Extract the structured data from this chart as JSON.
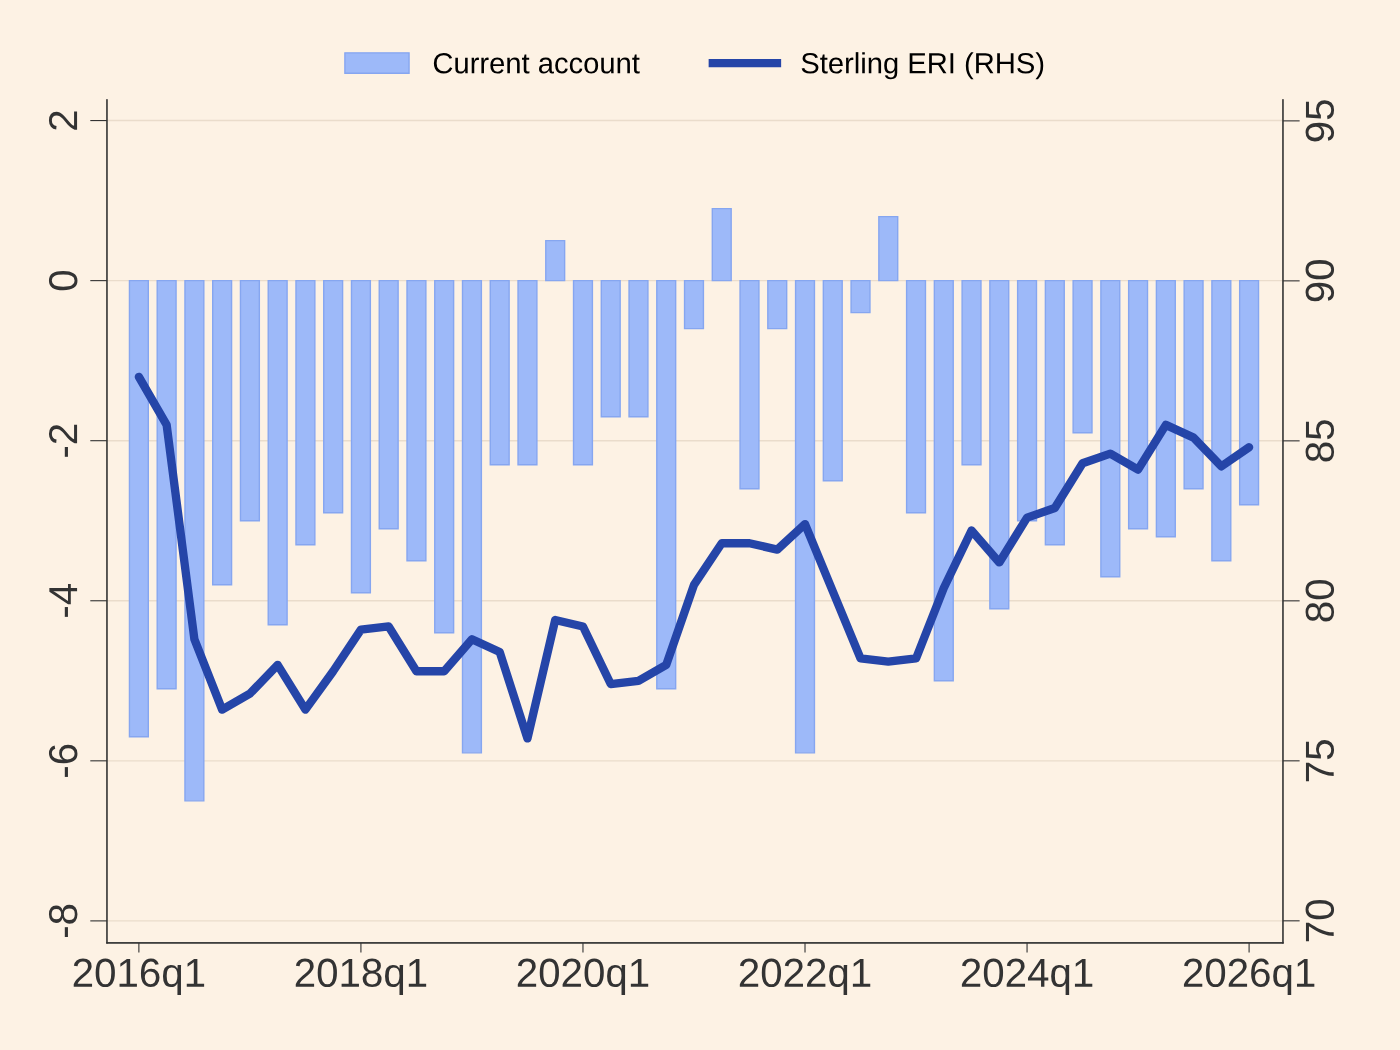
{
  "chart_data": {
    "type": "bar",
    "categories": [
      "2016q1",
      null,
      null,
      null,
      null,
      null,
      null,
      null,
      "2018q1",
      null,
      null,
      null,
      null,
      null,
      null,
      null,
      "2020q1",
      null,
      null,
      null,
      null,
      null,
      null,
      null,
      "2022q1",
      null,
      null,
      null,
      null,
      null,
      null,
      null,
      "2024q1",
      null,
      null,
      null,
      null,
      null,
      null,
      null,
      "2026q1"
    ],
    "series": [
      {
        "name": "Current account",
        "color": "#9db9f9",
        "values": [
          -5.7,
          -5.1,
          -6.5,
          -3.8,
          -3.0,
          -4.3,
          -3.3,
          -2.9,
          -3.9,
          -3.1,
          -3.5,
          -4.4,
          -5.9,
          -2.3,
          -2.3,
          0.5,
          -2.3,
          -1.7,
          -1.7,
          -5.1,
          -0.6,
          0.9,
          -2.6,
          -0.6,
          -5.9,
          -2.5,
          -0.4,
          0.8,
          -2.9,
          -5.0,
          -2.3,
          -4.1,
          -3.0,
          -3.3,
          -1.9,
          -3.7,
          -3.1,
          -3.2,
          -2.6,
          -3.5,
          -2.8
        ]
      },
      {
        "name": "Sterling ERI (RHS)",
        "type": "line",
        "axis": "y2",
        "color": "#2545a8",
        "values": [
          87.0,
          85.5,
          78.8,
          76.6,
          77.1,
          78.0,
          76.6,
          77.8,
          79.1,
          79.2,
          77.8,
          77.8,
          78.8,
          78.4,
          75.7,
          79.4,
          79.2,
          77.4,
          77.5,
          78.0,
          80.5,
          81.8,
          81.8,
          81.6,
          82.4,
          80.3,
          78.2,
          78.1,
          78.2,
          80.4,
          82.2,
          81.2,
          82.6,
          82.9,
          84.3,
          84.6,
          84.1,
          85.5,
          85.1,
          84.2,
          84.8
        ]
      }
    ],
    "ylim": [
      -8.275,
      2.26
    ],
    "yticks": [
      -8,
      -6,
      -4,
      -2,
      0,
      2
    ],
    "y2lim": [
      69.31,
      95.66
    ],
    "y2ticks": [
      70,
      75,
      80,
      85,
      90,
      95
    ],
    "grid": "y",
    "legend": "top"
  }
}
